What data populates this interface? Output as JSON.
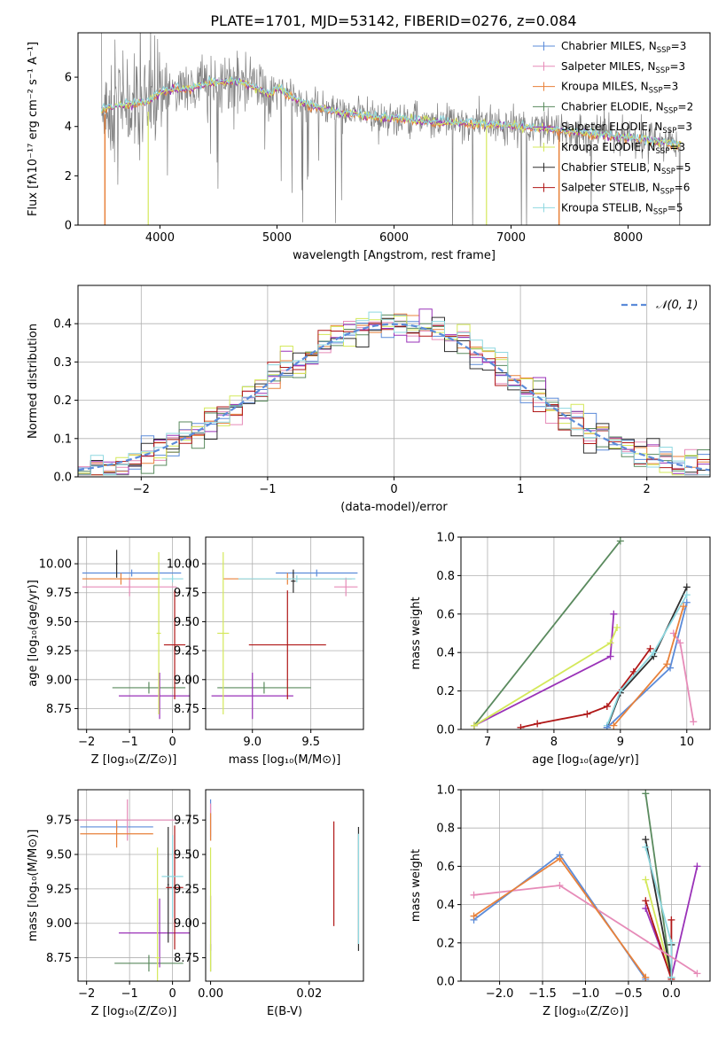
{
  "title": "PLATE=1701, MJD=53142, FIBERID=0276, z=0.084",
  "colors": {
    "chabrier_miles": "#5b8bd9",
    "salpeter_miles": "#e68bb8",
    "kroupa_miles": "#e8813a",
    "chabrier_elodie": "#5a8a5e",
    "salpeter_elodie": "#9a32b8",
    "kroupa_elodie": "#d4e85a",
    "chabrier_stelib": "#2f2f2f",
    "salpeter_stelib": "#b01818",
    "kroupa_stelib": "#8fd8e0",
    "data": "#808080",
    "gaussian": "#5b8bd9"
  },
  "chart_data": [
    {
      "id": "spectrum",
      "type": "line",
      "xlabel": "wavelength [Angstrom, rest frame]",
      "ylabel": "Flux [fλ10⁻¹⁷ erg cm⁻² s⁻¹ A⁻¹]",
      "xlim": [
        3300,
        8700
      ],
      "ylim": [
        0,
        7.8
      ],
      "xticks": [
        4000,
        5000,
        6000,
        7000,
        8000
      ],
      "yticks": [
        0,
        2,
        4,
        6
      ],
      "legend_position": "top-right",
      "legend": [
        {
          "label": "Chabrier MILES, N",
          "sub": "SSP",
          "suffix": "=3",
          "color": "chabrier_miles"
        },
        {
          "label": "Salpeter MILES, N",
          "sub": "SSP",
          "suffix": "=3",
          "color": "salpeter_miles"
        },
        {
          "label": "Kroupa MILES, N",
          "sub": "SSP",
          "suffix": "=3",
          "color": "kroupa_miles"
        },
        {
          "label": "Chabrier ELODIE, N",
          "sub": "SSP",
          "suffix": "=2",
          "color": "chabrier_elodie"
        },
        {
          "label": "Salpeter ELODIE, N",
          "sub": "SSP",
          "suffix": "=3",
          "color": "salpeter_elodie"
        },
        {
          "label": "Kroupa ELODIE, N",
          "sub": "SSP",
          "suffix": "=3",
          "color": "kroupa_elodie"
        },
        {
          "label": "Chabrier STELIB, N",
          "sub": "SSP",
          "suffix": "=5",
          "color": "chabrier_stelib"
        },
        {
          "label": "Salpeter STELIB, N",
          "sub": "SSP",
          "suffix": "=6",
          "color": "salpeter_stelib"
        },
        {
          "label": "Kroupa STELIB, N",
          "sub": "SSP",
          "suffix": "=5",
          "color": "kroupa_stelib"
        }
      ],
      "continuum": [
        [
          3500,
          4.7
        ],
        [
          3700,
          4.9
        ],
        [
          3900,
          5.0
        ],
        [
          4000,
          5.4
        ],
        [
          4100,
          5.5
        ],
        [
          4300,
          5.6
        ],
        [
          4500,
          5.8
        ],
        [
          4700,
          5.8
        ],
        [
          4860,
          5.5
        ],
        [
          4950,
          5.3
        ],
        [
          5000,
          5.6
        ],
        [
          5200,
          5.0
        ],
        [
          5500,
          4.6
        ],
        [
          5800,
          4.4
        ],
        [
          6000,
          4.35
        ],
        [
          6300,
          4.2
        ],
        [
          6600,
          4.15
        ],
        [
          6900,
          4.05
        ],
        [
          7200,
          3.95
        ],
        [
          7500,
          3.8
        ],
        [
          7800,
          3.65
        ],
        [
          8100,
          3.5
        ],
        [
          8400,
          3.25
        ]
      ]
    },
    {
      "id": "residuals",
      "type": "step",
      "xlabel": "(data-model)/error",
      "ylabel": "Normed distribution",
      "xlim": [
        -2.5,
        2.5
      ],
      "ylim": [
        0,
        0.5
      ],
      "xticks": [
        -2,
        -1,
        0,
        1,
        2
      ],
      "yticks": [
        0.0,
        0.1,
        0.2,
        0.3,
        0.4
      ],
      "grid": true,
      "legend_position": "top-right",
      "legend": [
        {
          "label": "𝒩(0, 1)",
          "style": "dashed",
          "color": "gaussian"
        }
      ],
      "bin_width": 0.1
    },
    {
      "id": "age_vs_Z",
      "type": "errorbar",
      "xlabel": "Z [log₁₀(Z/Z⊙)]",
      "ylabel": "age  [log₁₀(age/yr)]",
      "xlim": [
        -2.2,
        0.4
      ],
      "ylim": [
        8.57,
        10.23
      ],
      "xticks": [
        -2,
        -1,
        0
      ],
      "yticks": [
        8.75,
        9.0,
        9.25,
        9.5,
        9.75,
        10.0
      ],
      "grid": true,
      "points": [
        {
          "x": -0.95,
          "xerr": 1.15,
          "y": 9.92,
          "yerr": 0.03,
          "color": "chabrier_miles"
        },
        {
          "x": -1.0,
          "xerr": 1.1,
          "y": 9.8,
          "yerr": 0.08,
          "color": "salpeter_miles"
        },
        {
          "x": -1.2,
          "xerr": 0.9,
          "y": 9.87,
          "yerr": 0.05,
          "color": "kroupa_miles"
        },
        {
          "x": -0.55,
          "xerr": 0.85,
          "y": 8.93,
          "yerr": 0.05,
          "color": "chabrier_elodie"
        },
        {
          "x": -0.3,
          "xerr": 0.95,
          "y": 8.86,
          "yerr": 0.2,
          "color": "salpeter_elodie"
        },
        {
          "x": -0.32,
          "xerr": 0.05,
          "y": 9.4,
          "yerr": 0.7,
          "color": "kroupa_elodie"
        },
        {
          "x": -1.3,
          "xerr": 0.02,
          "y": 10.0,
          "yerr": 0.12,
          "color": "chabrier_stelib"
        },
        {
          "x": 0.05,
          "xerr": 0.25,
          "y": 9.3,
          "yerr": 0.47,
          "color": "salpeter_stelib"
        },
        {
          "x": 0.0,
          "xerr": 0.25,
          "y": 9.87,
          "yerr": 0.03,
          "color": "kroupa_stelib"
        }
      ]
    },
    {
      "id": "age_vs_mass",
      "type": "errorbar",
      "xlabel": "mass [log₁₀(M/M⊙)]",
      "ylabel": "",
      "xlim": [
        8.6,
        9.95
      ],
      "ylim": [
        8.57,
        10.23
      ],
      "xticks": [
        9.0,
        9.5
      ],
      "yticks": [
        8.75,
        9.0,
        9.25,
        9.5,
        9.75,
        10.0
      ],
      "grid": true,
      "points": [
        {
          "x": 9.55,
          "xerr": 0.35,
          "y": 9.92,
          "yerr": 0.03,
          "color": "chabrier_miles"
        },
        {
          "x": 9.8,
          "xerr": 0.1,
          "y": 9.8,
          "yerr": 0.08,
          "color": "salpeter_miles"
        },
        {
          "x": 9.3,
          "xerr": 0.55,
          "y": 9.87,
          "yerr": 0.05,
          "color": "kroupa_miles"
        },
        {
          "x": 9.1,
          "xerr": 0.4,
          "y": 8.93,
          "yerr": 0.05,
          "color": "chabrier_elodie"
        },
        {
          "x": 9.0,
          "xerr": 0.35,
          "y": 8.86,
          "yerr": 0.2,
          "color": "salpeter_elodie"
        },
        {
          "x": 8.75,
          "xerr": 0.05,
          "y": 9.4,
          "yerr": 0.7,
          "color": "kroupa_elodie"
        },
        {
          "x": 9.35,
          "xerr": 0.02,
          "y": 9.85,
          "yerr": 0.1,
          "color": "chabrier_stelib"
        },
        {
          "x": 9.3,
          "xerr": 0.33,
          "y": 9.3,
          "yerr": 0.47,
          "color": "salpeter_stelib"
        },
        {
          "x": 9.38,
          "xerr": 0.5,
          "y": 9.87,
          "yerr": 0.03,
          "color": "kroupa_stelib"
        }
      ]
    },
    {
      "id": "mass_weight_vs_age",
      "type": "line",
      "xlabel": "age  [log₁₀(age/yr)]",
      "ylabel": "mass weight",
      "xlim": [
        6.6,
        10.35
      ],
      "ylim": [
        0,
        1.0
      ],
      "xticks": [
        7,
        8,
        9,
        10
      ],
      "yticks": [
        0.0,
        0.2,
        0.4,
        0.6,
        0.8,
        1.0
      ],
      "grid": true,
      "series": [
        {
          "color": "chabrier_elodie",
          "points": [
            [
              6.8,
              0.02
            ],
            [
              9.0,
              0.98
            ]
          ]
        },
        {
          "color": "salpeter_elodie",
          "points": [
            [
              6.8,
              0.02
            ],
            [
              8.85,
              0.38
            ],
            [
              8.9,
              0.6
            ]
          ]
        },
        {
          "color": "kroupa_elodie",
          "points": [
            [
              6.8,
              0.02
            ],
            [
              8.85,
              0.45
            ],
            [
              8.95,
              0.53
            ]
          ]
        },
        {
          "color": "chabrier_stelib",
          "points": [
            [
              8.8,
              0.01
            ],
            [
              9.0,
              0.19
            ],
            [
              9.5,
              0.38
            ],
            [
              10.0,
              0.74
            ]
          ]
        },
        {
          "color": "salpeter_stelib",
          "points": [
            [
              7.5,
              0.01
            ],
            [
              7.75,
              0.03
            ],
            [
              8.5,
              0.08
            ],
            [
              8.8,
              0.12
            ],
            [
              9.2,
              0.3
            ],
            [
              9.45,
              0.42
            ]
          ]
        },
        {
          "color": "kroupa_stelib",
          "points": [
            [
              8.8,
              0.02
            ],
            [
              9.0,
              0.2
            ],
            [
              9.5,
              0.4
            ],
            [
              10.0,
              0.7
            ]
          ]
        },
        {
          "color": "chabrier_miles",
          "points": [
            [
              8.8,
              0.01
            ],
            [
              9.75,
              0.32
            ],
            [
              10.0,
              0.66
            ]
          ]
        },
        {
          "color": "salpeter_miles",
          "points": [
            [
              9.8,
              0.5
            ],
            [
              9.9,
              0.45
            ],
            [
              10.1,
              0.04
            ]
          ]
        },
        {
          "color": "kroupa_miles",
          "points": [
            [
              8.9,
              0.02
            ],
            [
              9.7,
              0.34
            ],
            [
              9.95,
              0.64
            ]
          ]
        }
      ]
    },
    {
      "id": "mass_vs_Z",
      "type": "errorbar",
      "xlabel": "Z [log₁₀(Z/Z⊙)]",
      "ylabel": "mass [log₁₀(M/M⊙)]",
      "xlim": [
        -2.2,
        0.4
      ],
      "ylim": [
        8.58,
        9.97
      ],
      "xticks": [
        -2,
        -1,
        0
      ],
      "yticks": [
        8.75,
        9.0,
        9.25,
        9.5,
        9.75
      ],
      "grid": true,
      "points": [
        {
          "x": -1.3,
          "xerr": 0.85,
          "y": 9.7,
          "yerr": 0.02,
          "color": "chabrier_miles"
        },
        {
          "x": -1.05,
          "xerr": 1.15,
          "y": 9.75,
          "yerr": 0.15,
          "color": "salpeter_miles"
        },
        {
          "x": -1.3,
          "xerr": 0.85,
          "y": 9.65,
          "yerr": 0.1,
          "color": "kroupa_miles"
        },
        {
          "x": -0.55,
          "xerr": 0.8,
          "y": 8.71,
          "yerr": 0.06,
          "color": "chabrier_elodie"
        },
        {
          "x": -0.3,
          "xerr": 0.95,
          "y": 8.93,
          "yerr": 0.25,
          "color": "salpeter_elodie"
        },
        {
          "x": -0.35,
          "xerr": 0.05,
          "y": 8.75,
          "yerr": 0.8,
          "color": "kroupa_elodie"
        },
        {
          "x": -0.1,
          "xerr": 0.02,
          "y": 9.28,
          "yerr": 0.42,
          "color": "chabrier_stelib"
        },
        {
          "x": 0.05,
          "xerr": 0.2,
          "y": 9.26,
          "yerr": 0.45,
          "color": "salpeter_stelib"
        },
        {
          "x": 0.0,
          "xerr": 0.25,
          "y": 9.34,
          "yerr": 0.3,
          "color": "kroupa_stelib"
        }
      ]
    },
    {
      "id": "mass_vs_ebv",
      "type": "errorbar",
      "xlabel": "E(B-V)",
      "ylabel": "",
      "xlim": [
        -0.001,
        0.031
      ],
      "ylim": [
        8.58,
        9.97
      ],
      "xticks": [
        0.0,
        0.02
      ],
      "yticks": [
        8.75,
        9.0,
        9.25,
        9.5,
        9.75
      ],
      "grid": false,
      "points": [
        {
          "x": 0.0,
          "xerr": 0,
          "y": 9.75,
          "yerr": 0.15,
          "color": "chabrier_miles"
        },
        {
          "x": 0.0,
          "xerr": 0,
          "y": 9.75,
          "yerr": 0.12,
          "color": "salpeter_miles"
        },
        {
          "x": 0.0,
          "xerr": 0,
          "y": 9.7,
          "yerr": 0.1,
          "color": "kroupa_miles"
        },
        {
          "x": 0.0,
          "xerr": 0,
          "y": 8.75,
          "yerr": 0.1,
          "color": "chabrier_elodie"
        },
        {
          "x": 0.0,
          "xerr": 0,
          "y": 9.0,
          "yerr": 0.2,
          "color": "salpeter_elodie"
        },
        {
          "x": 0.0,
          "xerr": 0,
          "y": 9.1,
          "yerr": 0.45,
          "color": "kroupa_elodie"
        },
        {
          "x": 0.03,
          "xerr": 0,
          "y": 9.25,
          "yerr": 0.45,
          "color": "chabrier_stelib"
        },
        {
          "x": 0.025,
          "xerr": 0,
          "y": 9.36,
          "yerr": 0.38,
          "color": "salpeter_stelib"
        },
        {
          "x": 0.03,
          "xerr": 0,
          "y": 9.25,
          "yerr": 0.4,
          "color": "kroupa_stelib"
        }
      ]
    },
    {
      "id": "mass_weight_vs_Z",
      "type": "line",
      "xlabel": "Z [log₁₀(Z/Z⊙)]",
      "ylabel": "mass weight",
      "xlim": [
        -2.45,
        0.45
      ],
      "ylim": [
        0,
        1.0
      ],
      "xticks": [
        -2.0,
        -1.5,
        -1.0,
        -0.5,
        0.0
      ],
      "yticks": [
        0.0,
        0.2,
        0.4,
        0.6,
        0.8,
        1.0
      ],
      "grid": true,
      "series": [
        {
          "color": "chabrier_elodie",
          "points": [
            [
              -0.3,
              0.98
            ],
            [
              0.0,
              0.02
            ]
          ]
        },
        {
          "color": "salpeter_elodie",
          "points": [
            [
              -0.3,
              0.38
            ],
            [
              0.0,
              0.02
            ],
            [
              0.3,
              0.6
            ]
          ]
        },
        {
          "color": "kroupa_elodie",
          "points": [
            [
              -0.3,
              0.53
            ],
            [
              0.0,
              0.02
            ]
          ]
        },
        {
          "color": "chabrier_stelib",
          "points": [
            [
              -0.3,
              0.74
            ],
            [
              0.0,
              0.02
            ],
            [
              0.0,
              0.19
            ]
          ]
        },
        {
          "color": "salpeter_stelib",
          "points": [
            [
              -0.3,
              0.42
            ],
            [
              0.0,
              0.01
            ],
            [
              0.0,
              0.32
            ]
          ]
        },
        {
          "color": "kroupa_stelib",
          "points": [
            [
              -0.3,
              0.7
            ],
            [
              0.0,
              0.2
            ],
            [
              0.0,
              0.02
            ]
          ]
        },
        {
          "color": "chabrier_miles",
          "points": [
            [
              -2.3,
              0.32
            ],
            [
              -1.3,
              0.66
            ],
            [
              -0.3,
              0.01
            ]
          ]
        },
        {
          "color": "salpeter_miles",
          "points": [
            [
              -2.3,
              0.45
            ],
            [
              -1.3,
              0.5
            ],
            [
              0.3,
              0.04
            ]
          ]
        },
        {
          "color": "kroupa_miles",
          "points": [
            [
              -2.3,
              0.34
            ],
            [
              -1.3,
              0.64
            ],
            [
              -0.3,
              0.02
            ]
          ]
        }
      ]
    }
  ]
}
